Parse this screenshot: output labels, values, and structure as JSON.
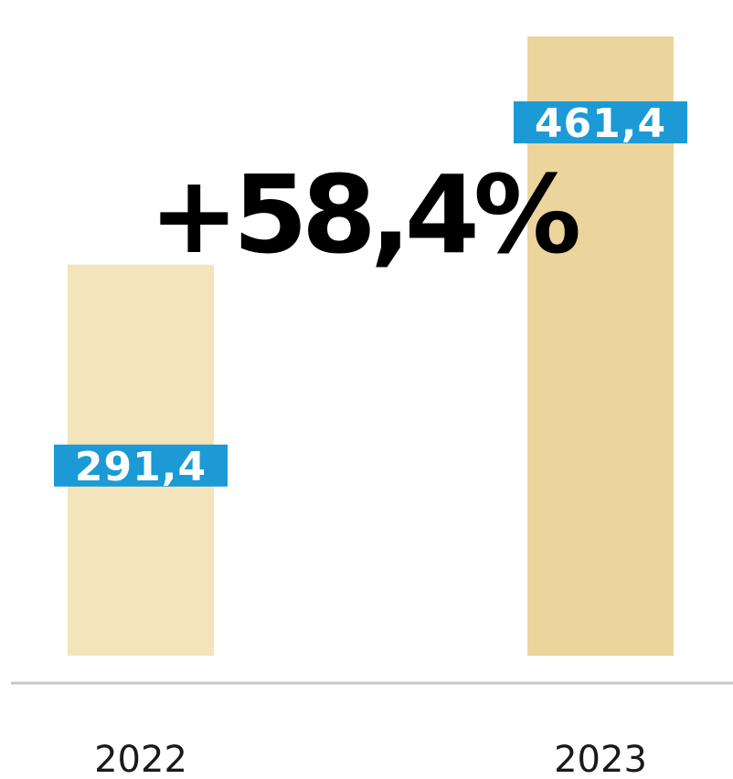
{
  "chart_data": {
    "type": "bar",
    "categories": [
      "2022",
      "2023"
    ],
    "values": [
      291.4,
      461.4
    ],
    "value_labels": [
      "291,4",
      "461,4"
    ],
    "headline": "+58,4%",
    "title": "",
    "xlabel": "",
    "ylabel": "",
    "ylim": [
      0,
      475
    ],
    "grid": false,
    "legend": "none",
    "colors": {
      "bars": [
        "#f3e4bb",
        "#ebd59c"
      ],
      "value_label_background": "#1b9ad6",
      "value_label_text": "#ffffff",
      "headline_text": "#000000",
      "axis_line": "#c8c8c8"
    }
  }
}
